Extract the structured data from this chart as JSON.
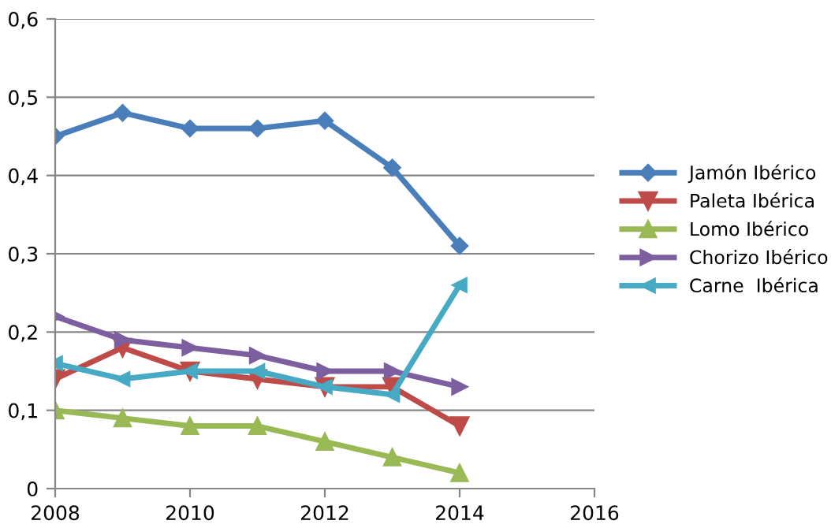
{
  "chart_data": {
    "type": "line",
    "x": [
      2008,
      2009,
      2010,
      2011,
      2012,
      2013,
      2014
    ],
    "series": [
      {
        "name": "Jamón Ibérico",
        "color": "#4a7ebb",
        "marker": "diamond",
        "values": [
          0.45,
          0.48,
          0.46,
          0.46,
          0.47,
          0.41,
          0.31
        ]
      },
      {
        "name": "Paleta Ibérica",
        "color": "#be4b48",
        "marker": "triangle_down",
        "values": [
          0.14,
          0.18,
          0.15,
          0.14,
          0.13,
          0.13,
          0.08
        ]
      },
      {
        "name": "Lomo Ibérico",
        "color": "#98b954",
        "marker": "triangle",
        "values": [
          0.1,
          0.09,
          0.08,
          0.08,
          0.06,
          0.04,
          0.02
        ]
      },
      {
        "name": "Chorizo Ibérico",
        "color": "#7d5fa0",
        "marker": "triangle_right",
        "values": [
          0.22,
          0.19,
          0.18,
          0.17,
          0.15,
          0.15,
          0.13
        ]
      },
      {
        "name": "Carne  Ibérica",
        "color": "#46aac5",
        "marker": "triangle_left",
        "values": [
          0.16,
          0.14,
          0.15,
          0.15,
          0.13,
          0.12,
          0.26
        ]
      }
    ],
    "xlim": [
      2008,
      2016
    ],
    "xticks": [
      2008,
      2010,
      2012,
      2014,
      2016
    ],
    "ylim": [
      0,
      0.6
    ],
    "yticks": [
      0,
      {
        "value": 0.1,
        "label": "0,1"
      },
      {
        "value": 0.2,
        "label": "0,2"
      },
      {
        "value": 0.3,
        "label": "0,3"
      },
      {
        "value": 0.4,
        "label": "0,4"
      },
      {
        "value": 0.5,
        "label": "0,5"
      },
      {
        "value": 0.6,
        "label": "0,6"
      }
    ],
    "grid": "y",
    "legend": "right",
    "line_style": "solid"
  }
}
